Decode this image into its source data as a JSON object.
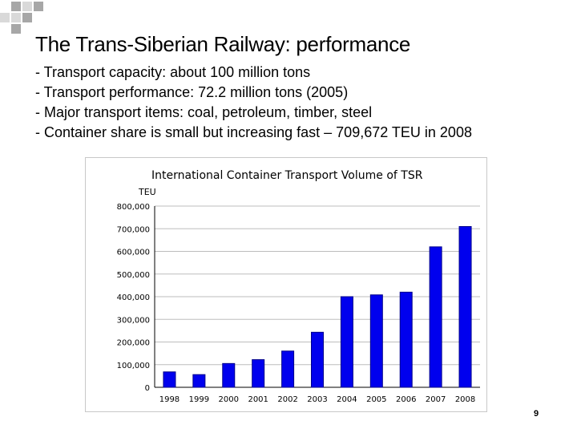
{
  "slide": {
    "title": "The Trans-Siberian Railway: performance",
    "bullets": [
      "- Transport capacity: about 100 million tons",
      "- Transport performance: 72.2 million tons (2005)",
      "- Major transport items: coal, petroleum, timber, steel",
      "- Container share is small but increasing fast – 709,672 TEU in 2008"
    ],
    "page_number": "9"
  },
  "colors": {
    "bar": "#0000ee",
    "bar_stroke": "#00008b",
    "gridline": "#bdbdbd",
    "axis": "#000000",
    "deco_dark": "#a7a7a7",
    "deco_light": "#d9d9d9"
  },
  "chart_data": {
    "type": "bar",
    "title": "International Container Transport Volume of TSR",
    "ylabel": "TEU",
    "xlabel": "",
    "categories": [
      "1998",
      "1999",
      "2000",
      "2001",
      "2002",
      "2003",
      "2004",
      "2005",
      "2006",
      "2007",
      "2008"
    ],
    "values": [
      68000,
      56000,
      105000,
      122000,
      160000,
      243000,
      400000,
      408000,
      420000,
      620000,
      709672
    ],
    "ylim": [
      0,
      800000
    ],
    "yticks": [
      0,
      100000,
      200000,
      300000,
      400000,
      500000,
      600000,
      700000,
      800000
    ],
    "ytick_labels": [
      "0",
      "100,000",
      "200,000",
      "300,000",
      "400,000",
      "500,000",
      "600,000",
      "700,000",
      "800,000"
    ],
    "grid": true,
    "legend": "none"
  }
}
